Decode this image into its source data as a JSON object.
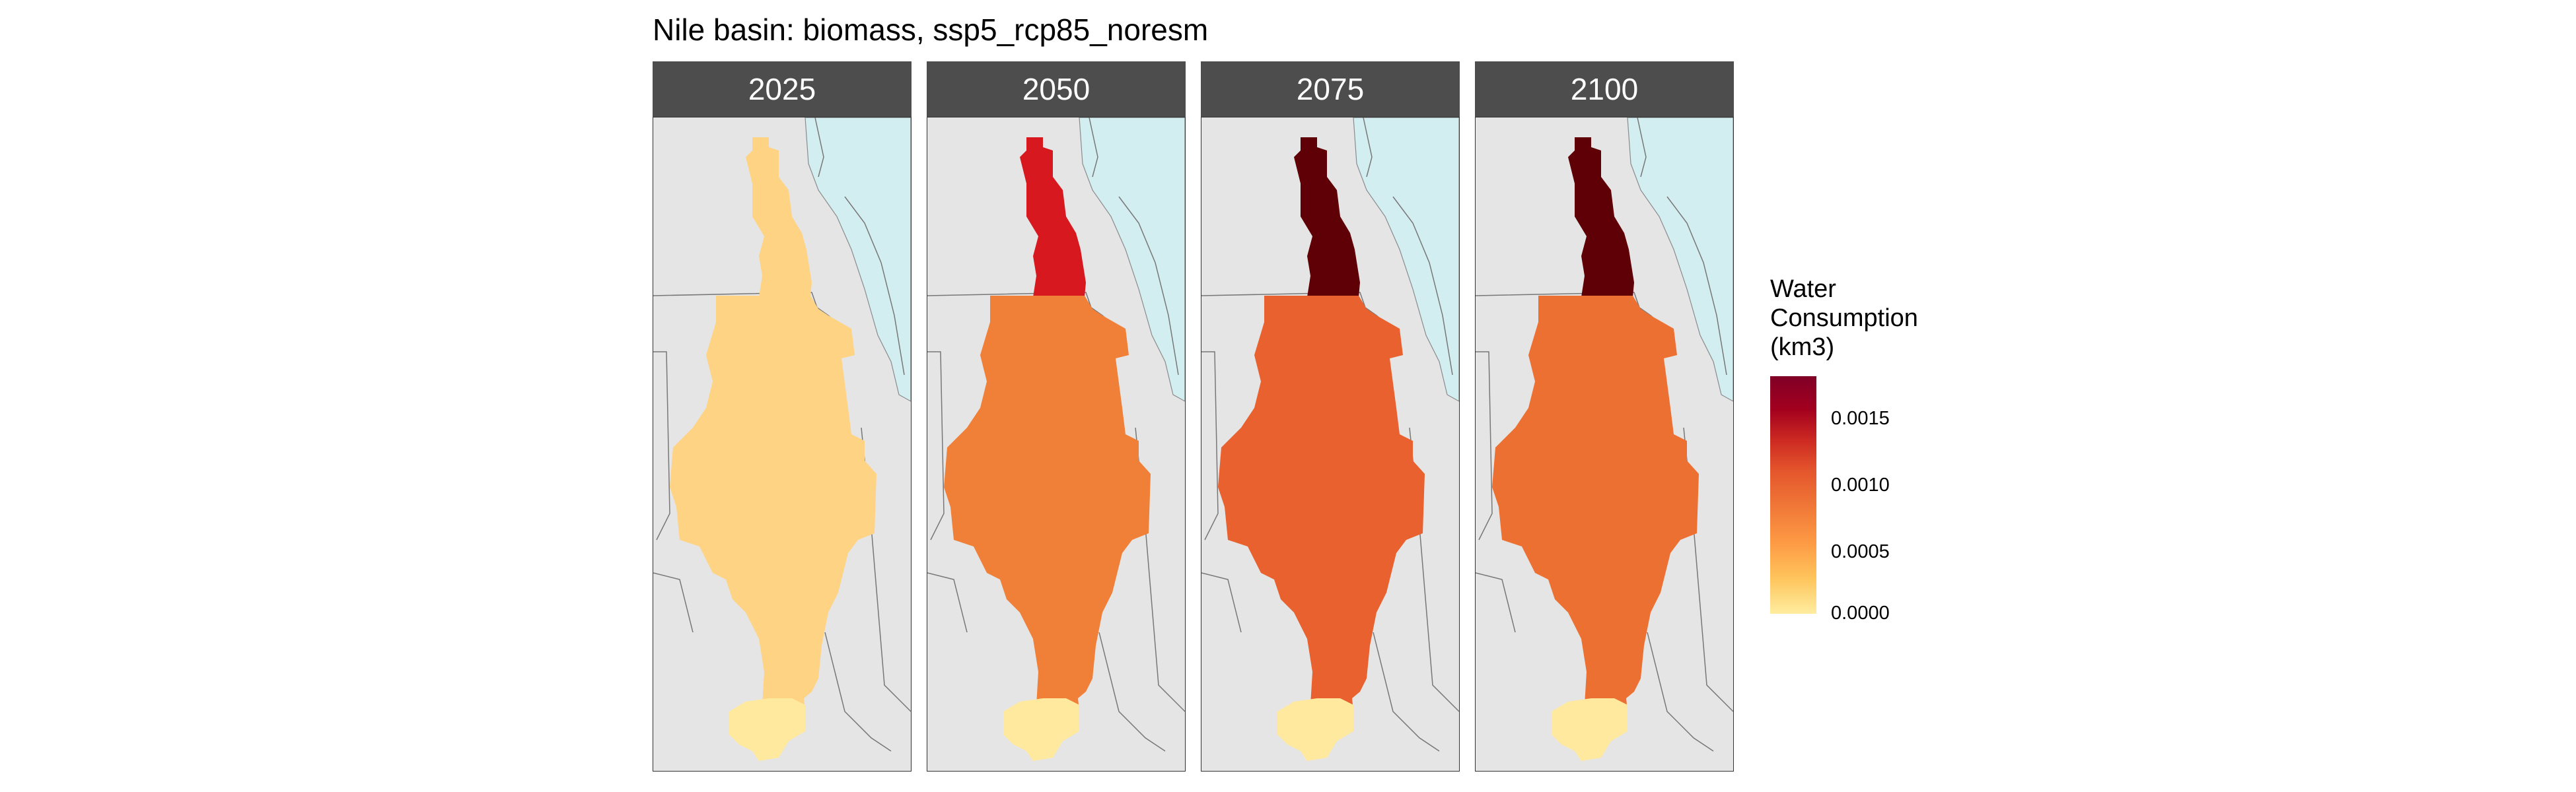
{
  "title": "Nile basin: biomass, ssp5_rcp85_noresm",
  "panels": [
    {
      "year": "2025",
      "upper_color": "#fed384",
      "upper_value": 0.0002,
      "main_color": "#fed384",
      "main_value": 0.0002,
      "south_color": "#ffe99e"
    },
    {
      "year": "2050",
      "upper_color": "#d7191f",
      "upper_value": 0.0014,
      "main_color": "#f07f38",
      "main_value": 0.0007,
      "south_color": "#ffe99e"
    },
    {
      "year": "2075",
      "upper_color": "#5e0005",
      "upper_value": 0.0018,
      "main_color": "#e8612e",
      "main_value": 0.0009,
      "south_color": "#ffe99e"
    },
    {
      "year": "2100",
      "upper_color": "#5e0005",
      "upper_value": 0.0018,
      "main_color": "#ed7033",
      "main_value": 0.0008,
      "south_color": "#ffe99e"
    }
  ],
  "legend": {
    "title_line1": "Water",
    "title_line2": "Consumption",
    "title_line3": "(km3)",
    "ticks": [
      "0.0015",
      "0.0010",
      "0.0005",
      "0.0000"
    ],
    "min": 0,
    "max": 0.00188
  },
  "colors": {
    "panel_background": "#e5e5e5",
    "water": "#d3eef0",
    "strip": "#4d4d4d",
    "border": "#777777"
  }
}
